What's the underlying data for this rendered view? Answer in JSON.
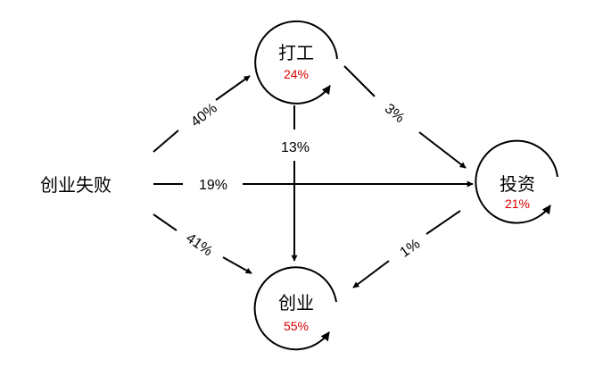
{
  "diagram": {
    "start_node": {
      "label": "创业失败"
    },
    "nodes": {
      "work": {
        "label": "打工",
        "pct": "24%"
      },
      "invest": {
        "label": "投资",
        "pct": "21%"
      },
      "startup": {
        "label": "创业",
        "pct": "55%"
      }
    },
    "edges": {
      "start_to_work": "40%",
      "start_to_invest": "19%",
      "start_to_startup": "41%",
      "work_to_invest": "3%",
      "work_to_startup": "13%",
      "invest_to_startup": "1%"
    },
    "colors": {
      "line": "#000000",
      "node_pct": "#e00000"
    }
  }
}
